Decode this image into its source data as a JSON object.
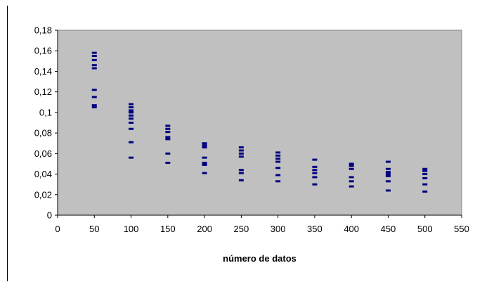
{
  "chart_data": {
    "type": "scatter",
    "title": "",
    "xlabel": "número de datos",
    "ylabel": "",
    "xlim": [
      0,
      550
    ],
    "ylim": [
      0,
      0.18
    ],
    "x_ticks": [
      "0",
      "50",
      "100",
      "150",
      "200",
      "250",
      "300",
      "350",
      "400",
      "450",
      "500",
      "550"
    ],
    "y_ticks": [
      "0",
      "0,02",
      "0,04",
      "0,06",
      "0,08",
      "0,1",
      "0,12",
      "0,14",
      "0,16",
      "0,18"
    ],
    "grid": false,
    "legend": "none",
    "colors": {
      "plot_background": "#c0c0c0",
      "marker": "#000080",
      "frame": "#808080"
    },
    "marker": "dash",
    "series": [
      {
        "points": [
          [
            50,
            0.158
          ],
          [
            50,
            0.155
          ],
          [
            50,
            0.151
          ],
          [
            50,
            0.146
          ],
          [
            50,
            0.143
          ],
          [
            50,
            0.122
          ],
          [
            50,
            0.115
          ],
          [
            50,
            0.107
          ],
          [
            50,
            0.105
          ],
          [
            100,
            0.108
          ],
          [
            100,
            0.105
          ],
          [
            100,
            0.102
          ],
          [
            100,
            0.1
          ],
          [
            100,
            0.097
          ],
          [
            100,
            0.094
          ],
          [
            100,
            0.09
          ],
          [
            100,
            0.084
          ],
          [
            100,
            0.071
          ],
          [
            100,
            0.056
          ],
          [
            150,
            0.087
          ],
          [
            150,
            0.084
          ],
          [
            150,
            0.081
          ],
          [
            150,
            0.076
          ],
          [
            150,
            0.074
          ],
          [
            150,
            0.06
          ],
          [
            150,
            0.051
          ],
          [
            200,
            0.07
          ],
          [
            200,
            0.068
          ],
          [
            200,
            0.066
          ],
          [
            200,
            0.056
          ],
          [
            200,
            0.051
          ],
          [
            200,
            0.049
          ],
          [
            200,
            0.041
          ],
          [
            250,
            0.066
          ],
          [
            250,
            0.063
          ],
          [
            250,
            0.06
          ],
          [
            250,
            0.057
          ],
          [
            250,
            0.044
          ],
          [
            250,
            0.041
          ],
          [
            250,
            0.034
          ],
          [
            300,
            0.061
          ],
          [
            300,
            0.058
          ],
          [
            300,
            0.055
          ],
          [
            300,
            0.052
          ],
          [
            300,
            0.046
          ],
          [
            300,
            0.039
          ],
          [
            300,
            0.033
          ],
          [
            350,
            0.054
          ],
          [
            350,
            0.047
          ],
          [
            350,
            0.044
          ],
          [
            350,
            0.041
          ],
          [
            350,
            0.037
          ],
          [
            350,
            0.03
          ],
          [
            400,
            0.05
          ],
          [
            400,
            0.048
          ],
          [
            400,
            0.045
          ],
          [
            400,
            0.037
          ],
          [
            400,
            0.033
          ],
          [
            400,
            0.028
          ],
          [
            450,
            0.052
          ],
          [
            450,
            0.045
          ],
          [
            450,
            0.042
          ],
          [
            450,
            0.04
          ],
          [
            450,
            0.038
          ],
          [
            450,
            0.033
          ],
          [
            450,
            0.024
          ],
          [
            500,
            0.045
          ],
          [
            500,
            0.043
          ],
          [
            500,
            0.04
          ],
          [
            500,
            0.036
          ],
          [
            500,
            0.03
          ],
          [
            500,
            0.023
          ]
        ]
      }
    ]
  }
}
